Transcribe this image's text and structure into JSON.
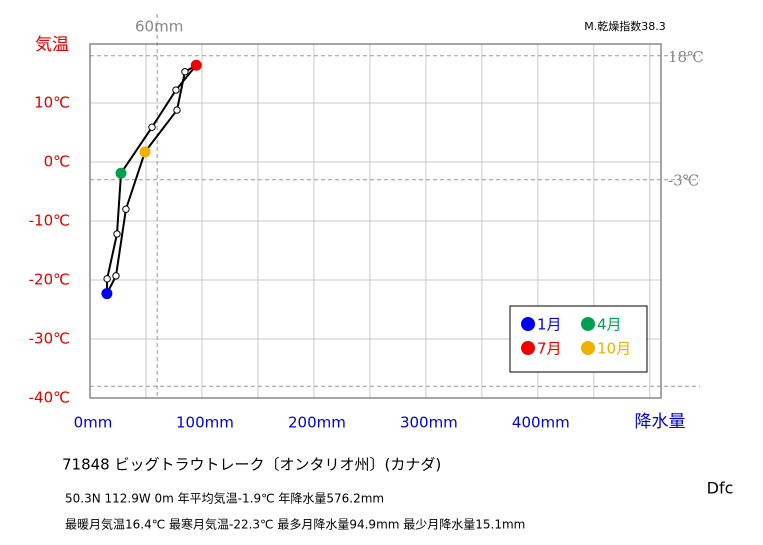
{
  "chart_data": {
    "type": "climograph",
    "ylabel": "気温",
    "xlabel": "降水量",
    "index_label": "M.乾燥指数38.3",
    "x": [
      15.1,
      15.3,
      24.1,
      27.7,
      55.4,
      76.8,
      94.9,
      84.8,
      77.7,
      49.1,
      32.1,
      23.2
    ],
    "y": [
      -22.3,
      -19.8,
      -12.2,
      -1.9,
      5.9,
      12.2,
      16.4,
      15.3,
      8.8,
      1.7,
      -8.0,
      -19.3
    ],
    "point_colors": [
      "#0000ee",
      null,
      null,
      "#00a050",
      null,
      null,
      "#ee0000",
      null,
      null,
      "#f0b000",
      null,
      null
    ],
    "line_color": "#000000",
    "legend": [
      {
        "name": "1月",
        "color": "#0000ee"
      },
      {
        "name": "4月",
        "color": "#00a050"
      },
      {
        "name": "7月",
        "color": "#ee0000"
      },
      {
        "name": "10月",
        "color": "#f0b000"
      }
    ],
    "xlim": [
      0,
      510
    ],
    "ylim": [
      -40,
      20
    ],
    "xticks": [
      {
        "value": 0,
        "label": "0mm"
      },
      {
        "value": 100,
        "label": "100mm"
      },
      {
        "value": 200,
        "label": "200mm"
      },
      {
        "value": 300,
        "label": "300mm"
      },
      {
        "value": 400,
        "label": "400mm"
      }
    ],
    "x_minor_ticks": [
      50,
      150,
      250,
      350,
      450,
      500
    ],
    "yticks": [
      {
        "value": -40,
        "label": "-40℃"
      },
      {
        "value": -30,
        "label": "-30℃"
      },
      {
        "value": -20,
        "label": "-20℃"
      },
      {
        "value": -10,
        "label": "-10℃"
      },
      {
        "value": 0,
        "label": "0℃"
      },
      {
        "value": 10,
        "label": "10℃"
      }
    ],
    "grid": true,
    "reference_lines": [
      {
        "axis": "x",
        "value": 60,
        "label": "60mm"
      },
      {
        "axis": "y",
        "value": 18,
        "label": "18℃"
      },
      {
        "axis": "y",
        "value": -3,
        "label": "-3℃"
      },
      {
        "axis": "y",
        "value": -38
      }
    ],
    "station": "71848  ビッグトラウトレーク〔オンタリオ州〕(カナダ)",
    "info_line1": "50.3N  112.9W 0m  年平均気温-1.9℃ 年降水量576.2mm",
    "info_line2": "最暖月気温16.4℃ 最寒月気温-22.3℃ 最多月降水量94.9mm 最少月降水量15.1mm",
    "climate_class": "Dfc"
  }
}
